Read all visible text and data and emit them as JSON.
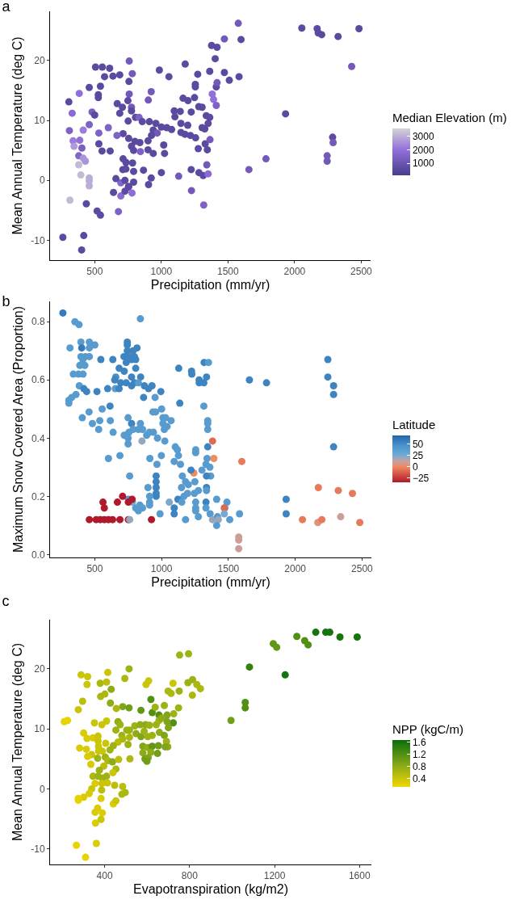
{
  "chart_data": [
    {
      "type": "scatter",
      "title": "a",
      "xlabel": "Precipitation (mm/yr)",
      "ylabel": "Mean Annual Temperature (deg C)",
      "clabel": "Median Elevation (m)",
      "marker": "circle",
      "xlim": [
        165,
        2570
      ],
      "ylim": [
        -13.3,
        28.2
      ],
      "xticks": [
        500,
        1000,
        1500,
        2000,
        2500
      ],
      "yticks": [
        -10,
        0,
        10,
        20
      ],
      "clim": [
        100,
        3580
      ],
      "cticks": [
        1000,
        2000,
        3000
      ],
      "x": [
        1577,
        2054,
        2169,
        2177,
        2203,
        2326,
        2483,
        2428,
        1473,
        1598,
        1377,
        1418,
        1404,
        1179,
        1363,
        1473,
        1510,
        1583,
        1273,
        1255,
        1255,
        1412,
        1418,
        1057,
        985,
        759,
        506,
        557,
        612,
        574,
        637,
        688,
        782,
        757,
        459,
        543,
        527,
        527,
        384,
        306,
        331,
        480,
        500,
        759,
        749,
        902,
        924,
        669,
        708,
        776,
        688,
        776,
        751,
        806,
        833,
        857,
        910,
        959,
        939,
        1000,
        1041,
        1077,
        969,
        926,
        900,
        839,
        802,
        755,
        713,
        776,
        792,
        843,
        900,
        939,
        1024,
        1018,
        713,
        734,
        784,
        711,
        734,
        792,
        866,
        1000,
        1130,
        1224,
        1282,
        1314,
        1351,
        1341,
        1277,
        1345,
        1329,
        1365,
        1257,
        1218,
        1177,
        1147,
        1198,
        1147,
        1102,
        1142,
        1097,
        1224,
        1163,
        1200,
        1249,
        1281,
        1306,
        1337,
        1363,
        1351,
        1306,
        1326,
        1382,
        1392,
        1412,
        1657,
        1785,
        1932,
        2285,
        2289,
        2244,
        2244,
        1226,
        1318,
        310,
        414,
        459,
        338,
        388,
        345,
        404,
        380,
        414,
        430,
        380,
        396,
        459,
        459,
        459,
        314,
        437,
        518,
        543,
        678,
        641,
        696,
        696,
        659,
        727,
        753,
        727,
        755,
        780,
        792,
        904,
        924,
        531,
        667,
        602,
        531,
        555,
        616,
        261,
        418,
        402
      ],
      "values": [
        26.2,
        25.4,
        25.3,
        24.6,
        24.3,
        24.0,
        25.3,
        19.0,
        23.6,
        23.5,
        22.5,
        22.2,
        20.3,
        19.4,
        18.2,
        18.0,
        16.7,
        17.3,
        17.7,
        16.0,
        15.6,
        15.6,
        16.3,
        17.3,
        18.4,
        19.9,
        18.9,
        18.9,
        18.7,
        17.3,
        17.4,
        17.6,
        17.8,
        16.5,
        15.5,
        15.7,
        14.3,
        13.8,
        14.5,
        13.1,
        11.2,
        11.4,
        10.9,
        14.4,
        13.3,
        13.4,
        14.8,
        12.8,
        12.2,
        12.2,
        11.2,
        11.6,
        9.9,
        10.5,
        10.5,
        9.8,
        9.8,
        9.5,
        8.4,
        8.9,
        8.8,
        8.5,
        7.9,
        7.5,
        6.6,
        6.3,
        6.5,
        7.0,
        7.8,
        5.7,
        5.0,
        4.8,
        5.1,
        4.5,
        4.5,
        5.9,
        3.6,
        3.0,
        2.9,
        1.8,
        1.9,
        1.5,
        1.7,
        1.3,
        0.7,
        1.8,
        1.3,
        0.8,
        1.1,
        2.6,
        5.3,
        5.1,
        6.1,
        6.8,
        7.1,
        7.5,
        7.7,
        8.0,
        9.2,
        9.5,
        10.6,
        11.5,
        11.6,
        11.4,
        13.7,
        13.3,
        13.8,
        12.3,
        12.2,
        10.8,
        10.5,
        9.5,
        8.8,
        8.6,
        14.4,
        13.5,
        12.5,
        1.8,
        3.6,
        11.1,
        7.2,
        6.3,
        4.1,
        3.2,
        -1.7,
        -4.1,
        8.3,
        8.4,
        9.3,
        6.6,
        6.7,
        5.7,
        5.4,
        4.1,
        3.7,
        3.2,
        2.6,
        0.9,
        0.4,
        -0.1,
        -0.9,
        -3.3,
        -3.9,
        -5.1,
        -5.8,
        -5.2,
        -2.0,
        -2.6,
        -0.4,
        0.3,
        0.0,
        -1.1,
        -1.8,
        -1.0,
        -2.1,
        -0.3,
        -0.7,
        0.4,
        7.9,
        7.5,
        8.8,
        6.1,
        4.9,
        4.9,
        -9.5,
        -9.2,
        -11.6
      ],
      "cvalues": [
        1200,
        600,
        600,
        600,
        600,
        600,
        600,
        1200,
        1200,
        600,
        600,
        600,
        600,
        600,
        600,
        600,
        600,
        600,
        600,
        600,
        600,
        600,
        1200,
        600,
        600,
        1200,
        600,
        600,
        600,
        600,
        600,
        600,
        1200,
        600,
        600,
        600,
        600,
        600,
        2000,
        600,
        1800,
        1400,
        600,
        1200,
        600,
        1200,
        1200,
        600,
        600,
        1200,
        600,
        600,
        600,
        600,
        1500,
        600,
        600,
        600,
        600,
        600,
        600,
        600,
        1200,
        600,
        600,
        600,
        600,
        600,
        600,
        600,
        600,
        1500,
        600,
        600,
        600,
        600,
        600,
        600,
        600,
        600,
        600,
        600,
        600,
        600,
        1200,
        600,
        600,
        600,
        1800,
        1200,
        600,
        600,
        600,
        1200,
        600,
        600,
        600,
        600,
        600,
        600,
        600,
        600,
        600,
        600,
        600,
        600,
        600,
        600,
        600,
        600,
        600,
        600,
        600,
        600,
        2000,
        2000,
        1500,
        1200,
        1200,
        600,
        600,
        1200,
        1200,
        1200,
        1200,
        1500,
        1500,
        2200,
        1500,
        2200,
        2000,
        2700,
        1400,
        1600,
        2600,
        2600,
        3200,
        3200,
        3000,
        3000,
        3000,
        3200,
        600,
        600,
        600,
        1500,
        600,
        1800,
        1600,
        600,
        600,
        600,
        600,
        600,
        1900,
        600,
        600,
        600,
        1500,
        1500,
        1500,
        600,
        600,
        600,
        600,
        600,
        600
      ]
    },
    {
      "type": "scatter",
      "title": "b",
      "xlabel": "Precipitation (mm/yr)",
      "ylabel": "Maximum Snow Covered Area (Proportion)",
      "clabel": "Latitude",
      "marker": "circle",
      "xlim": [
        165,
        2570
      ],
      "ylim": [
        -0.01,
        0.87
      ],
      "xticks": [
        500,
        1000,
        1500,
        2000,
        2500
      ],
      "yticks": [
        {
          "value": 0,
          "label": "0.0"
        },
        {
          "value": 0.2,
          "label": "0.2"
        },
        {
          "value": 0.4,
          "label": "0.4"
        },
        {
          "value": 0.6,
          "label": "0.6"
        },
        {
          "value": 0.8,
          "label": "0.8"
        }
      ],
      "clim": [
        -35,
        70
      ],
      "cticks": [
        {
          "value": -25,
          "label": "−25"
        },
        0,
        25,
        50
      ],
      "x": [
        261,
        351,
        382,
        841,
        396,
        459,
        500,
        314,
        402,
        459,
        396,
        429,
        459,
        410,
        388,
        425,
        339,
        378,
        412,
        384,
        418,
        439,
        359,
        327,
        306,
        306,
        545,
        635,
        743,
        743,
        743,
        718,
        755,
        796,
        816,
        786,
        735,
        775,
        806,
        682,
        720,
        657,
        649,
        694,
        735,
        775,
        806,
        843,
        796,
        826,
        775,
        516,
        596,
        653,
        682,
        871,
        902,
        928,
        994,
        865,
        951,
        614,
        1136,
        1316,
        406,
        457,
        555,
        482,
        537,
        529,
        616,
        637,
        749,
        775,
        720,
        749,
        749,
        755,
        786,
        826,
        857,
        888,
        908,
        939,
        969,
        1024,
        841,
        853,
        935,
        955,
        1000,
        1010,
        1030,
        1071,
        1010,
        1041,
        1020,
        1128,
        1224,
        1226,
        1281,
        1281,
        1316,
        1336,
        1318,
        1351,
        1657,
        1785,
        2244,
        2244,
        2287,
        2287,
        2287,
        1345,
        1345,
        1345,
        1381,
        1391,
        1600,
        1241,
        1345,
        1255,
        1255,
        1102,
        1118,
        1126,
        998,
        912,
        965,
        602,
        688,
        1094,
        1141,
        1340,
        1332,
        1361,
        1367,
        1336,
        1302,
        1220,
        1155,
        1179,
        1149,
        1200,
        1249,
        1275,
        1336,
        1336,
        761,
        959,
        959,
        959,
        959,
        959,
        898,
        910,
        910,
        910,
        1194,
        1245,
        1167,
        1122,
        1151,
        1255,
        1255,
        1255,
        1275,
        1332,
        1332,
        1412,
        1489,
        1473,
        1057,
        1094,
        1094,
        988,
        1179,
        1363,
        1381,
        1418,
        1424,
        1412,
        1469,
        1469,
        1510,
        1583,
        751,
        782,
        806,
        837,
        857,
        826,
        561,
        571,
        669,
        708,
        751,
        779,
        459,
        510,
        541,
        571,
        602,
        633,
        688,
        751,
        761,
        924,
        1577,
        1577,
        1577,
        1932,
        1932,
        2054,
        2169,
        2199,
        2340,
        2483,
        2173,
        2322,
        2428
      ],
      "values": [
        0.83,
        0.8,
        0.79,
        0.81,
        0.73,
        0.73,
        0.72,
        0.71,
        0.71,
        0.71,
        0.68,
        0.68,
        0.68,
        0.67,
        0.65,
        0.65,
        0.62,
        0.62,
        0.62,
        0.58,
        0.57,
        0.56,
        0.55,
        0.54,
        0.53,
        0.52,
        0.67,
        0.67,
        0.73,
        0.72,
        0.7,
        0.68,
        0.68,
        0.68,
        0.71,
        0.7,
        0.66,
        0.67,
        0.67,
        0.64,
        0.63,
        0.61,
        0.6,
        0.59,
        0.59,
        0.61,
        0.64,
        0.61,
        0.59,
        0.59,
        0.58,
        0.56,
        0.57,
        0.57,
        0.57,
        0.58,
        0.57,
        0.58,
        0.56,
        0.54,
        0.54,
        0.51,
        0.52,
        0.51,
        0.47,
        0.49,
        0.5,
        0.45,
        0.46,
        0.43,
        0.46,
        0.42,
        0.47,
        0.45,
        0.41,
        0.4,
        0.38,
        0.42,
        0.43,
        0.43,
        0.43,
        0.41,
        0.42,
        0.42,
        0.4,
        0.39,
        0.45,
        0.39,
        0.49,
        0.49,
        0.5,
        0.47,
        0.47,
        0.46,
        0.45,
        0.44,
        0.43,
        0.64,
        0.63,
        0.62,
        0.6,
        0.59,
        0.59,
        0.61,
        0.66,
        0.66,
        0.6,
        0.59,
        0.67,
        0.61,
        0.58,
        0.55,
        0.37,
        0.46,
        0.45,
        0.43,
        0.39,
        0.33,
        0.32,
        0.28,
        0.37,
        0.36,
        0.35,
        0.37,
        0.36,
        0.34,
        0.34,
        0.33,
        0.31,
        0.33,
        0.34,
        0.32,
        0.31,
        0.33,
        0.31,
        0.3,
        0.27,
        0.27,
        0.29,
        0.29,
        0.27,
        0.25,
        0.23,
        0.24,
        0.25,
        0.22,
        0.23,
        0.22,
        0.27,
        0.27,
        0.25,
        0.23,
        0.21,
        0.2,
        0.23,
        0.2,
        0.18,
        0.17,
        0.21,
        0.21,
        0.2,
        0.19,
        0.18,
        0.18,
        0.16,
        0.15,
        0.13,
        0.18,
        0.16,
        0.19,
        0.18,
        0.16,
        0.18,
        0.16,
        0.14,
        0.14,
        0.12,
        0.14,
        0.12,
        0.13,
        0.12,
        0.1,
        0.16,
        0.14,
        0.12,
        0.14,
        0.19,
        0.18,
        0.16,
        0.17,
        0.16,
        0.15,
        0.18,
        0.16,
        0.18,
        0.2,
        0.18,
        0.19,
        0.12,
        0.12,
        0.12,
        0.12,
        0.12,
        0.12,
        0.12,
        0.12,
        0.12,
        0.12,
        0.06,
        0.05,
        0.02,
        0.19,
        0.14,
        0.12,
        0.11,
        0.12,
        0.13,
        0.11,
        0.23,
        0.22,
        0.21
      ],
      "cvalues": [
        60,
        40,
        40,
        40,
        40,
        40,
        40,
        40,
        60,
        40,
        40,
        40,
        40,
        40,
        40,
        40,
        40,
        40,
        40,
        40,
        55,
        55,
        40,
        40,
        40,
        40,
        55,
        55,
        55,
        55,
        55,
        55,
        55,
        55,
        55,
        55,
        55,
        55,
        55,
        55,
        55,
        50,
        55,
        55,
        55,
        55,
        55,
        55,
        55,
        40,
        55,
        55,
        55,
        40,
        55,
        55,
        55,
        55,
        55,
        55,
        40,
        55,
        55,
        40,
        40,
        40,
        40,
        40,
        40,
        40,
        40,
        40,
        40,
        55,
        40,
        40,
        40,
        40,
        40,
        40,
        40,
        40,
        40,
        40,
        40,
        40,
        40,
        20,
        40,
        40,
        40,
        40,
        40,
        40,
        40,
        40,
        40,
        55,
        55,
        55,
        55,
        55,
        55,
        55,
        55,
        40,
        55,
        55,
        55,
        55,
        55,
        55,
        55,
        40,
        40,
        40,
        -10,
        0,
        -5,
        0,
        55,
        40,
        40,
        40,
        40,
        40,
        40,
        40,
        40,
        40,
        40,
        40,
        40,
        40,
        40,
        40,
        40,
        55,
        40,
        55,
        40,
        40,
        40,
        40,
        40,
        40,
        55,
        40,
        40,
        55,
        55,
        55,
        55,
        55,
        40,
        40,
        40,
        40,
        40,
        40,
        40,
        55,
        40,
        40,
        40,
        40,
        40,
        55,
        40,
        40,
        40,
        40,
        25,
        55,
        55,
        40,
        40,
        40,
        20,
        40,
        20,
        40,
        -10,
        25,
        40,
        40,
        40,
        25,
        40,
        40,
        40,
        40,
        -35,
        -35,
        -35,
        -35,
        -35,
        -35,
        -35,
        -35,
        -35,
        -35,
        -35,
        -35,
        -35,
        -35,
        20,
        -35,
        10,
        10,
        10,
        55,
        55,
        -5,
        5,
        -5,
        10,
        -5,
        -5,
        -5,
        -5
      ]
    },
    {
      "type": "scatter",
      "title": "c",
      "xlabel": "Evapotranspiration (kg/m2)",
      "ylabel": "Mean Annual Temperature (deg C)",
      "clabel": "NPP (kgC/m)",
      "marker": "circle",
      "xlim": [
        143,
        1656
      ],
      "ylim": [
        -12.6,
        28.2
      ],
      "xticks": [
        400,
        800,
        1200,
        1600
      ],
      "yticks": [
        -10,
        0,
        10,
        20
      ],
      "clim": [
        0.13,
        1.68
      ],
      "cticks": [
        0.4,
        0.8,
        1.2,
        1.6
      ],
      "x": [
        1394,
        1441,
        1460,
        1508,
        1589,
        1305,
        1342,
        1358,
        1194,
        1210,
        1082,
        1250,
        1062,
        1062,
        995,
        753,
        795,
        792,
        814,
        834,
        851,
        813,
        515,
        495,
        415,
        289,
        320,
        317,
        379,
        409,
        431,
        381,
        401,
        296,
        276,
        595,
        607,
        722,
        699,
        713,
        751,
        748,
        427,
        485,
        515,
        455,
        571,
        618,
        624,
        638,
        681,
        656,
        694,
        725,
        723,
        210,
        225,
        352,
        387,
        409,
        463,
        473,
        517,
        453,
        504,
        542,
        567,
        593,
        611,
        643,
        656,
        669,
        694,
        700,
        481,
        517,
        548,
        571,
        586,
        603,
        624,
        658,
        681,
        301,
        317,
        345,
        369,
        369,
        405,
        463,
        485,
        282,
        314,
        339,
        320,
        371,
        371,
        389,
        441,
        425,
        510,
        580,
        603,
        624,
        653,
        691,
        697,
        685,
        580,
        618,
        649,
        590,
        605,
        599,
        335,
        367,
        403,
        415,
        437,
        466,
        519,
        396,
        375,
        453,
        439,
        345,
        369,
        389,
        409,
        355,
        387,
        413,
        339,
        386,
        447,
        485,
        481,
        497,
        327,
        301,
        276,
        276,
        383,
        441,
        453,
        367,
        355,
        389,
        383,
        357,
        267,
        361,
        310
      ],
      "values": [
        26.1,
        26.1,
        26.1,
        25.3,
        25.3,
        25.4,
        24.7,
        24.0,
        24.2,
        23.6,
        20.3,
        19.0,
        14.4,
        13.5,
        11.4,
        22.3,
        22.5,
        17.7,
        18.2,
        17.4,
        16.7,
        15.6,
        20.0,
        18.4,
        19.4,
        19.0,
        18.7,
        17.4,
        17.6,
        17.8,
        16.6,
        15.4,
        15.8,
        14.6,
        13.2,
        17.4,
        18.0,
        17.6,
        16.3,
        15.9,
        16.3,
        13.5,
        14.3,
        13.7,
        13.5,
        13.4,
        13.1,
        14.9,
        12.7,
        13.6,
        13.9,
        12.3,
        12.3,
        12.5,
        11.0,
        11.2,
        11.4,
        11.0,
        10.7,
        11.3,
        11.2,
        10.7,
        9.8,
        9.8,
        9.8,
        10.5,
        10.7,
        10.7,
        10.6,
        10.7,
        11.4,
        11.8,
        11.2,
        10.2,
        8.9,
        8.6,
        9.2,
        8.7,
        9.6,
        8.7,
        8.9,
        9.4,
        8.9,
        9.3,
        8.4,
        8.5,
        8.8,
        8.0,
        7.6,
        7.8,
        8.3,
        6.8,
        6.6,
        5.7,
        5.4,
        7.1,
        6.3,
        6.3,
        7.2,
        6.5,
        7.4,
        7.1,
        6.9,
        7.1,
        7.2,
        7.9,
        7.0,
        7.0,
        6.0,
        6.1,
        5.9,
        5.0,
        5.2,
        4.6,
        4.1,
        5.1,
        5.3,
        4.7,
        4.5,
        4.9,
        5.0,
        3.8,
        3.1,
        3.3,
        2.7,
        2.1,
        2.1,
        1.8,
        2.1,
        0.9,
        0.9,
        1.0,
        0.0,
        -0.2,
        0.6,
        0.4,
        -0.9,
        -0.6,
        -0.8,
        -1.4,
        -1.6,
        -1.9,
        -1.6,
        -2.5,
        -2.0,
        -3.2,
        -3.9,
        -4.0,
        -5.1,
        -5.7,
        -9.4,
        -9.1,
        -11.4
      ],
      "cvalues": [
        1.6,
        1.6,
        1.6,
        1.6,
        1.6,
        1.2,
        1.2,
        1.2,
        1.1,
        1.1,
        1.4,
        1.6,
        1.2,
        1.2,
        1.0,
        0.7,
        0.7,
        0.7,
        0.7,
        0.6,
        0.6,
        0.6,
        0.7,
        0.6,
        0.4,
        0.4,
        0.4,
        0.4,
        0.6,
        0.5,
        0.8,
        0.6,
        0.6,
        0.5,
        0.4,
        0.4,
        0.4,
        0.4,
        0.6,
        0.6,
        0.7,
        0.7,
        0.8,
        0.9,
        1.0,
        0.6,
        1.1,
        1.2,
        1.2,
        0.7,
        0.7,
        1.2,
        0.9,
        0.7,
        1.2,
        0.2,
        0.2,
        0.4,
        0.4,
        0.4,
        0.8,
        0.7,
        0.7,
        0.7,
        0.7,
        0.7,
        0.8,
        0.8,
        0.7,
        0.7,
        0.7,
        0.8,
        0.9,
        0.9,
        0.7,
        0.6,
        0.8,
        0.9,
        0.7,
        0.7,
        0.7,
        0.8,
        0.9,
        0.3,
        0.3,
        0.3,
        0.4,
        0.4,
        0.4,
        0.5,
        0.6,
        0.3,
        0.3,
        0.4,
        0.3,
        0.4,
        0.4,
        0.4,
        0.7,
        0.7,
        0.7,
        0.9,
        0.8,
        1.1,
        1.0,
        0.7,
        0.8,
        0.9,
        0.8,
        0.8,
        1.0,
        1.0,
        0.9,
        1.0,
        0.3,
        0.7,
        0.7,
        0.6,
        0.8,
        0.5,
        0.6,
        0.5,
        0.7,
        0.6,
        0.4,
        0.6,
        0.7,
        0.7,
        0.7,
        0.3,
        0.4,
        0.4,
        0.4,
        0.5,
        0.5,
        0.5,
        0.6,
        0.6,
        0.3,
        0.3,
        0.2,
        0.2,
        0.3,
        0.3,
        0.4,
        0.3,
        0.3,
        0.3,
        0.4,
        0.3,
        0.2,
        0.3,
        0.2
      ]
    }
  ]
}
